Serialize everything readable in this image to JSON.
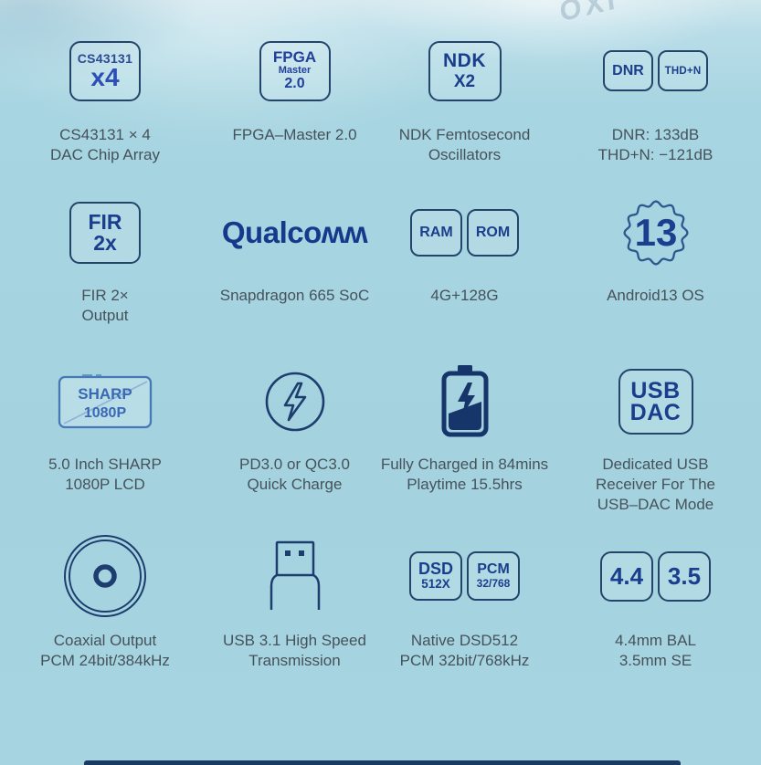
{
  "watermark": "OXI",
  "colors": {
    "background": "#a6d4e0",
    "icon_border": "#24456b",
    "icon_text": "#1b3e8c",
    "caption_text": "#46525b",
    "lcd_blue": "#4678b6",
    "bottom_bar": "#1b3a63"
  },
  "features": [
    {
      "id": "cs43131",
      "box": {
        "line1": "CS43131",
        "line2": "x4"
      },
      "caption": [
        "CS43131 × 4",
        "DAC Chip Array"
      ]
    },
    {
      "id": "fpga",
      "box": {
        "line1": "FPGA",
        "line2": "Master",
        "line3": "2.0"
      },
      "caption": [
        "FPGA–Master 2.0"
      ]
    },
    {
      "id": "ndk",
      "box": {
        "line1": "NDK",
        "line2": "X2"
      },
      "caption": [
        "NDK Femtosecond",
        "Oscillators"
      ]
    },
    {
      "id": "dnr-thdn",
      "boxes": [
        "DNR",
        "THD+N"
      ],
      "caption": [
        "DNR: 133dB",
        "THD+N: −121dB"
      ]
    },
    {
      "id": "fir",
      "box": {
        "line1": "FIR",
        "line2": "2x"
      },
      "caption": [
        "FIR 2×",
        "Output"
      ]
    },
    {
      "id": "qualcomm",
      "logo_text": "Qualcoʍʍ",
      "caption": [
        "Snapdragon 665 SoC"
      ]
    },
    {
      "id": "ram-rom",
      "boxes": [
        "RAM",
        "ROM"
      ],
      "caption": [
        "4G+128G"
      ]
    },
    {
      "id": "android13",
      "badge_text": "13",
      "caption": [
        "Android13 OS"
      ]
    },
    {
      "id": "sharp-lcd",
      "screen": {
        "line1": "SHARP",
        "line2": "1080P"
      },
      "caption": [
        "5.0 Inch SHARP",
        "1080P LCD"
      ]
    },
    {
      "id": "quick-charge",
      "caption": [
        "PD3.0 or QC3.0",
        "Quick Charge"
      ]
    },
    {
      "id": "battery",
      "caption": [
        "Fully Charged in 84mins",
        "Playtime 15.5hrs"
      ]
    },
    {
      "id": "usb-dac",
      "box": {
        "line1": "USB",
        "line2": "DAC"
      },
      "caption": [
        "Dedicated USB",
        "Receiver For The",
        "USB–DAC Mode"
      ]
    },
    {
      "id": "coaxial",
      "caption": [
        "Coaxial Output",
        "PCM 24bit/384kHz"
      ]
    },
    {
      "id": "usb3",
      "caption": [
        "USB 3.1 High Speed",
        "Transmission"
      ]
    },
    {
      "id": "dsd-pcm",
      "boxes": [
        {
          "line1": "DSD",
          "line2": "512X"
        },
        {
          "line1": "PCM",
          "line2": "32/768"
        }
      ],
      "caption": [
        "Native DSD512",
        "PCM 32bit/768kHz"
      ]
    },
    {
      "id": "jacks",
      "boxes": [
        "4.4",
        "3.5"
      ],
      "caption": [
        "4.4mm BAL",
        "3.5mm SE"
      ]
    }
  ]
}
